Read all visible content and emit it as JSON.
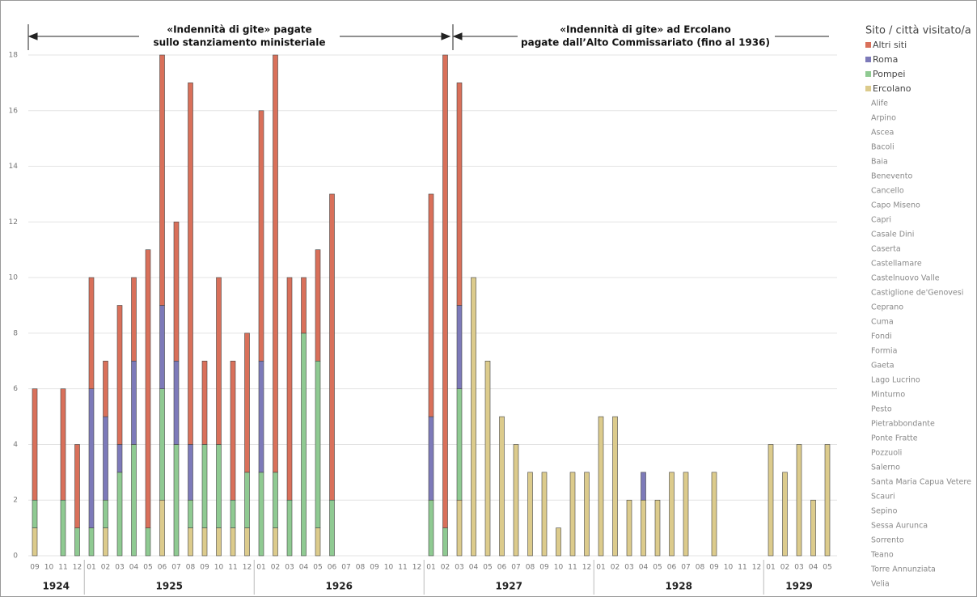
{
  "chart_data": {
    "type": "stacked-bar",
    "groups": [
      {
        "label": "1924",
        "categories": [
          "09",
          "10",
          "11",
          "12"
        ]
      },
      {
        "label": "1925",
        "categories": [
          "01",
          "02",
          "03",
          "04",
          "05",
          "06",
          "07",
          "08",
          "09",
          "10",
          "11",
          "12"
        ]
      },
      {
        "label": "1926",
        "categories": [
          "01",
          "02",
          "03",
          "04",
          "05",
          "06",
          "07",
          "08",
          "09",
          "10",
          "11",
          "12"
        ]
      },
      {
        "label": "1927",
        "categories": [
          "01",
          "02",
          "03",
          "04",
          "05",
          "06",
          "07",
          "08",
          "09",
          "10",
          "11",
          "12"
        ]
      },
      {
        "label": "1928",
        "categories": [
          "01",
          "02",
          "03",
          "04",
          "05",
          "06",
          "07",
          "08",
          "09",
          "10",
          "11",
          "12"
        ]
      },
      {
        "label": "1929",
        "categories": [
          "01",
          "02",
          "03",
          "04",
          "05"
        ]
      }
    ],
    "series": [
      {
        "name": "Ercolano",
        "color": "#dccb8c",
        "values": [
          1,
          0,
          0,
          0,
          0,
          1,
          0,
          0,
          0,
          2,
          0,
          1,
          1,
          1,
          1,
          1,
          0,
          1,
          0,
          0,
          1,
          0,
          0,
          0,
          0,
          0,
          0,
          0,
          0,
          0,
          2,
          10,
          7,
          5,
          4,
          3,
          3,
          1,
          3,
          3,
          5,
          5,
          2,
          2,
          2,
          3,
          3,
          0,
          3,
          0,
          0,
          0,
          4,
          3,
          4,
          2,
          4
        ]
      },
      {
        "name": "Pompei",
        "color": "#8fca92",
        "values": [
          1,
          0,
          2,
          1,
          1,
          1,
          3,
          4,
          1,
          4,
          4,
          1,
          3,
          3,
          1,
          2,
          3,
          2,
          2,
          8,
          6,
          2,
          0,
          0,
          0,
          0,
          0,
          0,
          2,
          1,
          4,
          0,
          0,
          0,
          0,
          0,
          0,
          0,
          0,
          0,
          0,
          0,
          0,
          0,
          0,
          0,
          0,
          0,
          0,
          0,
          0,
          0,
          0,
          0,
          0,
          0,
          0
        ]
      },
      {
        "name": "Roma",
        "color": "#7d7ab9",
        "values": [
          0,
          0,
          0,
          0,
          5,
          3,
          1,
          3,
          0,
          3,
          3,
          2,
          0,
          0,
          0,
          0,
          4,
          0,
          0,
          0,
          0,
          0,
          0,
          0,
          0,
          0,
          0,
          0,
          3,
          0,
          3,
          0,
          0,
          0,
          0,
          0,
          0,
          0,
          0,
          0,
          0,
          0,
          0,
          1,
          0,
          0,
          0,
          0,
          0,
          0,
          0,
          0,
          0,
          0,
          0,
          0,
          0
        ]
      },
      {
        "name": "Altri siti",
        "color": "#d9705a",
        "values": [
          4,
          0,
          4,
          3,
          4,
          2,
          5,
          3,
          10,
          9,
          5,
          13,
          3,
          6,
          5,
          5,
          9,
          15,
          8,
          2,
          4,
          11,
          0,
          0,
          0,
          0,
          0,
          0,
          8,
          17,
          8,
          0,
          0,
          0,
          0,
          0,
          0,
          0,
          0,
          0,
          0,
          0,
          0,
          0,
          0,
          0,
          0,
          0,
          0,
          0,
          0,
          0,
          0,
          0,
          0,
          0,
          0
        ]
      }
    ],
    "ylim": [
      0,
      18
    ],
    "yticks": [
      0,
      2,
      4,
      6,
      8,
      10,
      12,
      14,
      16,
      18
    ],
    "grid": true,
    "annotations": [
      {
        "lines": [
          "«Indennità di gite» pagate",
          "sullo stanziamento ministeriale"
        ]
      },
      {
        "lines": [
          "«Indennità di gite» ad Ercolano",
          "pagate dall’Alto Commissariato (fino al 1936)"
        ]
      }
    ],
    "legend_title": "Sito / città visitato/a",
    "sites": [
      "Alife",
      "Arpino",
      "Ascea",
      "Bacoli",
      "Baia",
      "Benevento",
      "Cancello",
      "Capo Miseno",
      "Capri",
      "Casale Dini",
      "Caserta",
      "Castellamare",
      "Castelnuovo Valle",
      "Castiglione de'Genovesi",
      "Ceprano",
      "Cuma",
      "Fondi",
      "Formia",
      "Gaeta",
      "Lago Lucrino",
      "Minturno",
      "Pesto",
      "Pietrabbondante",
      "Ponte Fratte",
      "Pozzuoli",
      "Salerno",
      "Santa Maria Capua Vetere",
      "Scauri",
      "Sepino",
      "Sessa Aurunca",
      "Sorrento",
      "Teano",
      "Torre Annunziata",
      "Velia"
    ]
  }
}
